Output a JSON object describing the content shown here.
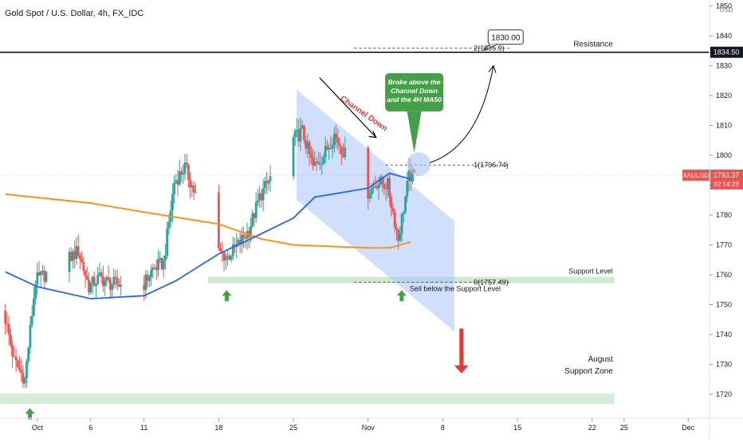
{
  "header": {
    "symbol_title": "Gold Spot / U.S. Dollar, 4h, FX_IDC"
  },
  "currency_label": "USD",
  "symbol_tag": "XAUUSD",
  "last_price": "1793.37",
  "countdown": "02:14:23",
  "resistance_price": "1834.50",
  "colors": {
    "up": "#26a69a",
    "down": "#ef5350",
    "ma50": "#2962ff",
    "ma200": "#f7931a",
    "channel": "#a9c4f7",
    "support": "#c8e6c9",
    "arrow_green": "#43a047",
    "arrow_red": "#e53935"
  },
  "chart_data": {
    "type": "candlestick",
    "title": "Gold Spot / U.S. Dollar, 4h, FX_IDC",
    "ylim": [
      1712,
      1852
    ],
    "y_ticks": [
      1720,
      1730,
      1740,
      1750,
      1760,
      1770,
      1780,
      1790,
      1800,
      1810,
      1820,
      1830,
      1840,
      1850
    ],
    "x_ticks": [
      {
        "label": "Oct",
        "date": "2021-10-01"
      },
      {
        "label": "6",
        "date": "2021-10-06"
      },
      {
        "label": "11",
        "date": "2021-10-11"
      },
      {
        "label": "18",
        "date": "2021-10-18"
      },
      {
        "label": "25",
        "date": "2021-10-25"
      },
      {
        "label": "Nov",
        "date": "2021-11-01"
      },
      {
        "label": "8",
        "date": "2021-11-08"
      },
      {
        "label": "15",
        "date": "2021-11-15"
      },
      {
        "label": "22",
        "date": "2021-11-22"
      },
      {
        "label": "25",
        "date": "2021-11-25"
      },
      {
        "label": "Dec",
        "date": "2021-12-01"
      }
    ],
    "price_path": [
      [
        "2021-09-28",
        1748
      ],
      [
        "2021-09-29",
        1731
      ],
      [
        "2021-09-30",
        1725
      ],
      [
        "2021-10-01",
        1758
      ],
      [
        "2021-10-04",
        1765
      ],
      [
        "2021-10-05",
        1768
      ],
      [
        "2021-10-06",
        1756
      ],
      [
        "2021-10-07",
        1759
      ],
      [
        "2021-10-08",
        1757
      ],
      [
        "2021-10-11",
        1756
      ],
      [
        "2021-10-12",
        1762
      ],
      [
        "2021-10-13",
        1764
      ],
      [
        "2021-10-14",
        1791
      ],
      [
        "2021-10-15",
        1796
      ],
      [
        "2021-10-18",
        1768
      ],
      [
        "2021-10-19",
        1766
      ],
      [
        "2021-10-20",
        1770
      ],
      [
        "2021-10-21",
        1775
      ],
      [
        "2021-10-22",
        1786
      ],
      [
        "2021-10-25",
        1805
      ],
      [
        "2021-10-26",
        1808
      ],
      [
        "2021-10-27",
        1796
      ],
      [
        "2021-10-28",
        1800
      ],
      [
        "2021-10-29",
        1807
      ],
      [
        "2021-11-01",
        1787
      ],
      [
        "2021-11-02",
        1791
      ],
      [
        "2021-11-03",
        1790
      ],
      [
        "2021-11-04",
        1772
      ],
      [
        "2021-11-05",
        1793
      ]
    ],
    "series": [
      {
        "name": "4H MA50",
        "points": [
          [
            "2021-09-28",
            1761
          ],
          [
            "2021-10-01",
            1756
          ],
          [
            "2021-10-06",
            1752
          ],
          [
            "2021-10-11",
            1753
          ],
          [
            "2021-10-14",
            1758
          ],
          [
            "2021-10-18",
            1767
          ],
          [
            "2021-10-21",
            1772
          ],
          [
            "2021-10-25",
            1779
          ],
          [
            "2021-10-27",
            1786
          ],
          [
            "2021-11-01",
            1789
          ],
          [
            "2021-11-03",
            1794
          ],
          [
            "2021-11-05",
            1792
          ]
        ]
      },
      {
        "name": "MA200",
        "points": [
          [
            "2021-09-28",
            1787
          ],
          [
            "2021-10-06",
            1784
          ],
          [
            "2021-10-11",
            1781
          ],
          [
            "2021-10-18",
            1777
          ],
          [
            "2021-10-22",
            1772
          ],
          [
            "2021-10-25",
            1770
          ],
          [
            "2021-11-01",
            1769
          ],
          [
            "2021-11-03",
            1769
          ],
          [
            "2021-11-05",
            1771
          ]
        ]
      }
    ],
    "horizontal_lines": [
      {
        "label": "Resistance",
        "value": 1834.5
      },
      {
        "label": "1(1796.74)",
        "value": 1796.74
      },
      {
        "label": "2(1835.9)",
        "value": 1835.9
      },
      {
        "label": "0(1757.49)",
        "value": 1757.49
      }
    ],
    "zones": [
      {
        "label": "Support Level",
        "value_from": 1757,
        "value_to": 1759
      },
      {
        "label": "August Support Zone",
        "value_from": 1716,
        "value_to": 1720
      }
    ],
    "channel": {
      "label": "Channel Down",
      "upper_start": [
        "2021-10-25",
        1822
      ],
      "upper_end": [
        "2021-11-07",
        1778
      ],
      "lower_start": [
        "2021-10-25",
        1785
      ],
      "lower_end": [
        "2021-11-07",
        1741
      ]
    },
    "annotations": {
      "target": "1830.00",
      "broke_lines": [
        "Broke above the",
        "Channel Down",
        "and the 4H MA50"
      ],
      "sell_note": "Sell below the Support Level",
      "support_level": "Support Level",
      "august_line1": "August",
      "august_line2": "Support Zone",
      "resistance": "Resistance",
      "channel": "Channel Down"
    }
  }
}
